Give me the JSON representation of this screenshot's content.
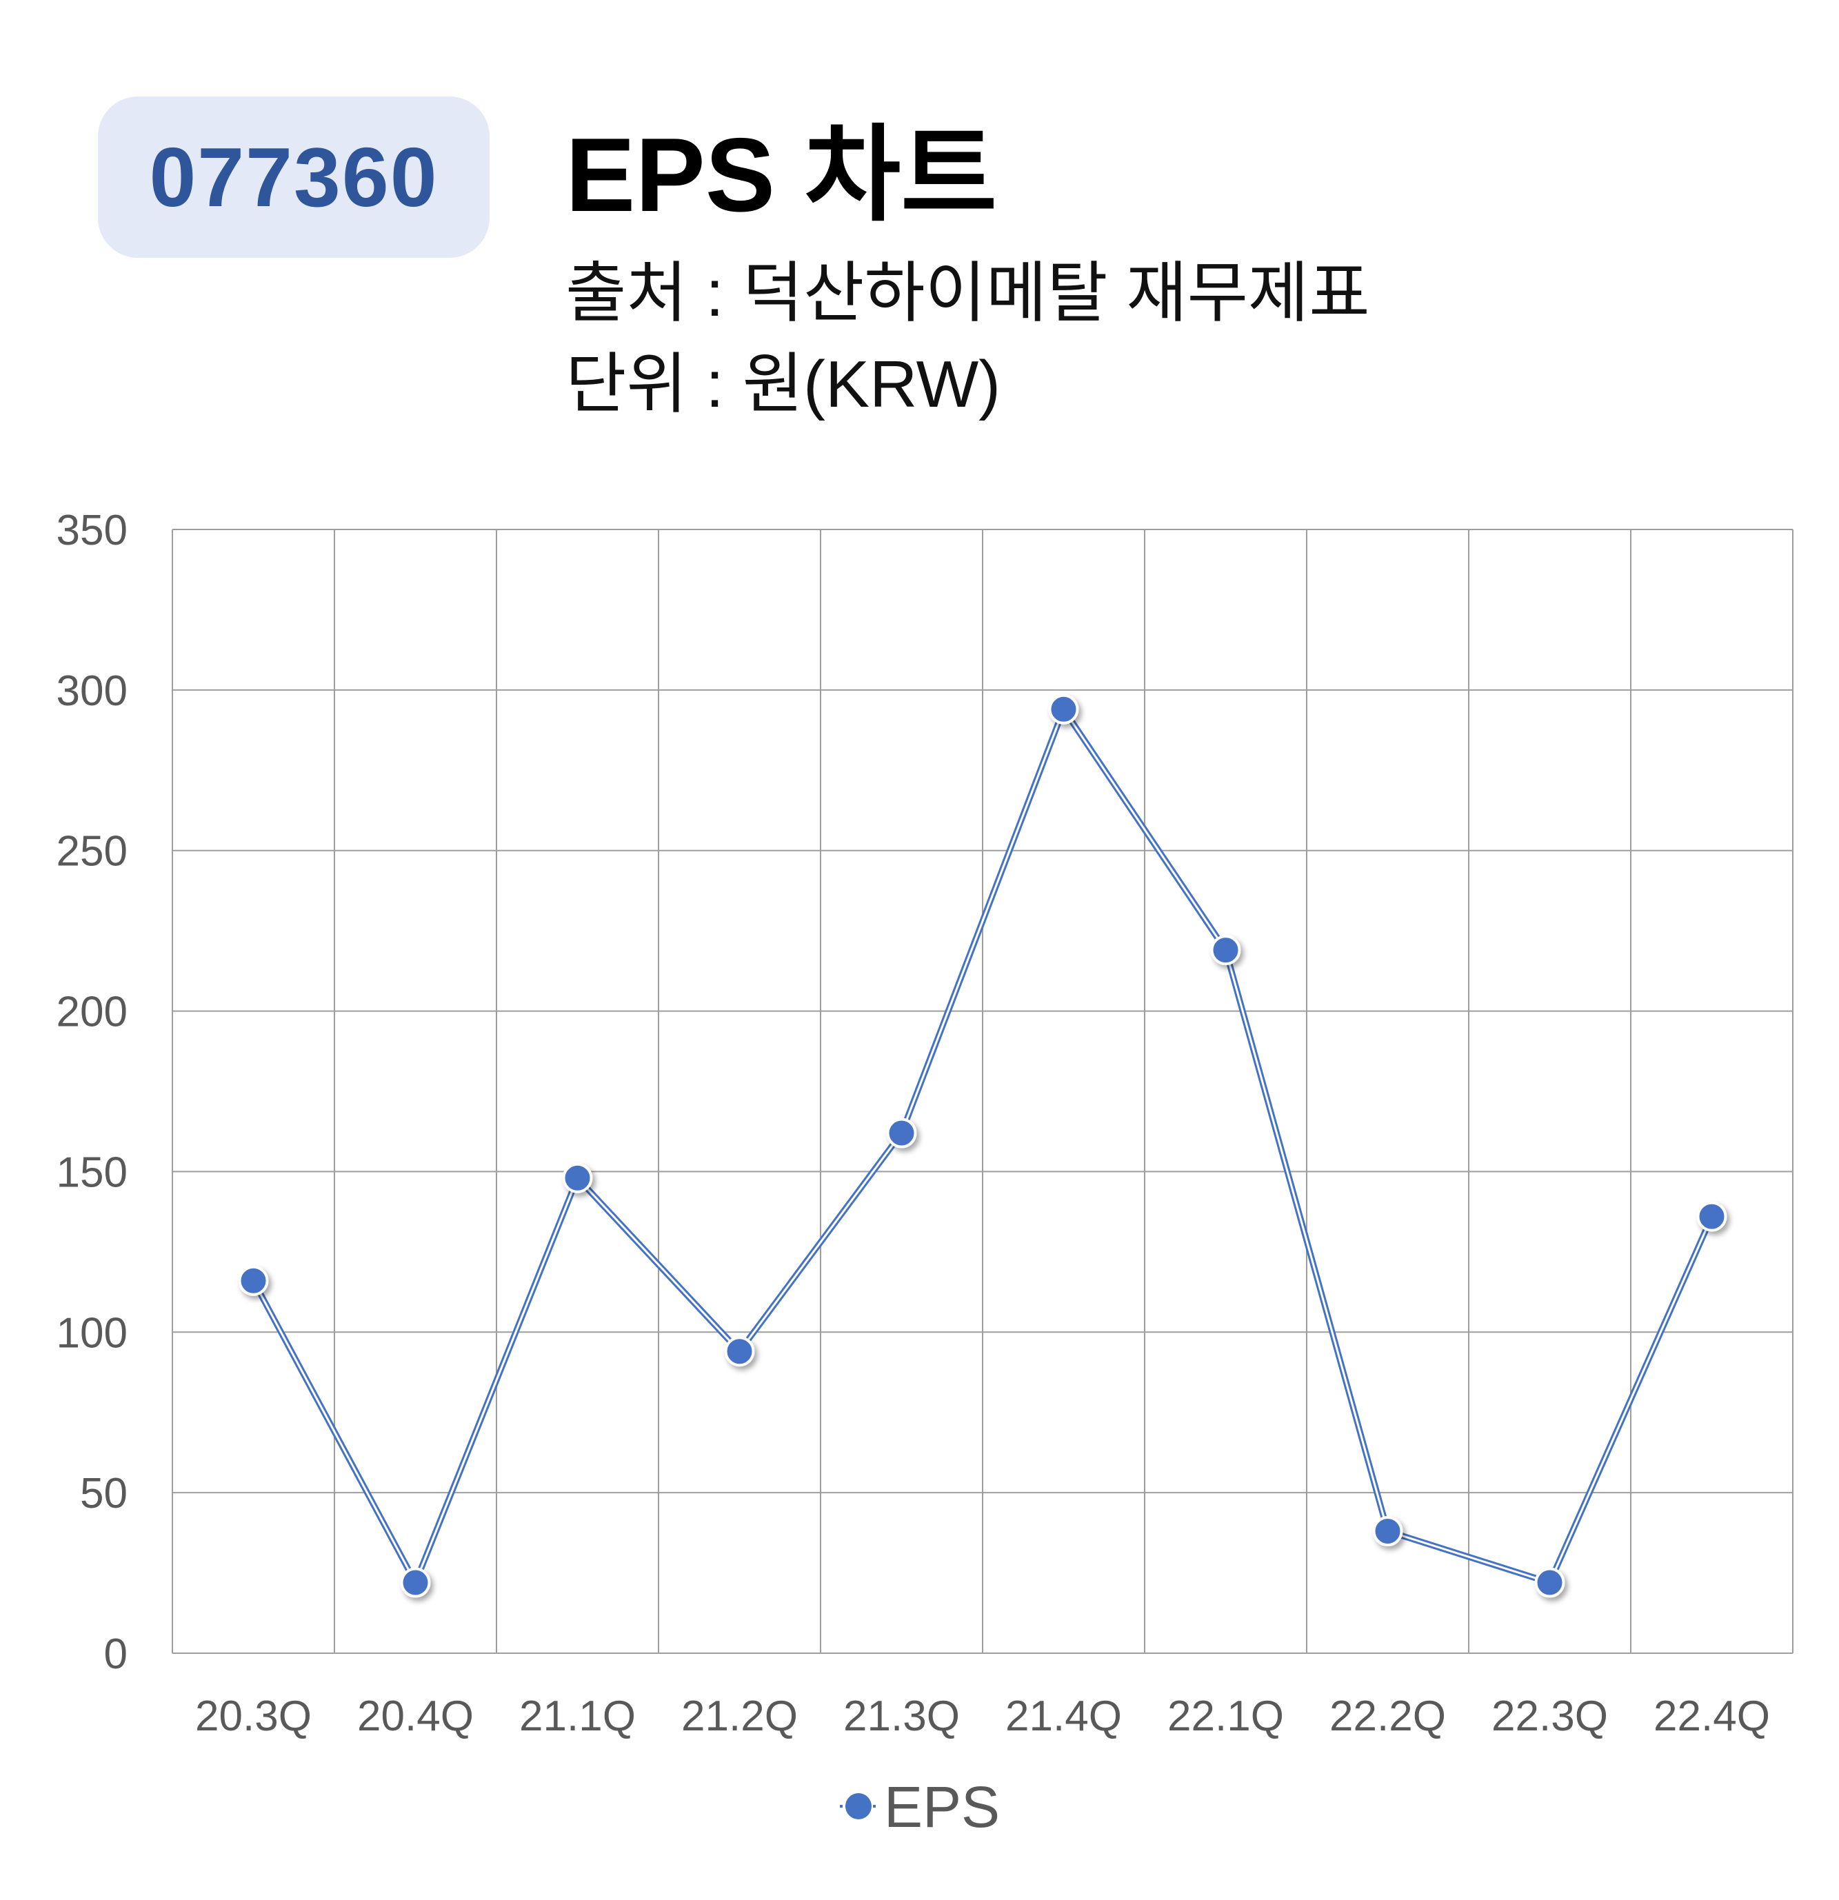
{
  "header": {
    "ticker": "077360",
    "title": "EPS 차트",
    "source_line": "출처 : 덕산하이메탈 재무제표",
    "unit_line": "단위 : 원(KRW)"
  },
  "colors": {
    "series": "#4472c4",
    "badge_bg": "#e3e9f6",
    "badge_text": "#2f559a",
    "grid": "#9e9e9e"
  },
  "chart_data": {
    "type": "line",
    "categories": [
      "20.3Q",
      "20.4Q",
      "21.1Q",
      "21.2Q",
      "21.3Q",
      "21.4Q",
      "22.1Q",
      "22.2Q",
      "22.3Q",
      "22.4Q"
    ],
    "series": [
      {
        "name": "EPS",
        "values": [
          116,
          22,
          148,
          94,
          162,
          294,
          219,
          38,
          22,
          136
        ]
      }
    ],
    "ylim": [
      0,
      350
    ],
    "yticks": [
      0,
      50,
      100,
      150,
      200,
      250,
      300,
      350
    ],
    "grid": true,
    "legend": "bottom-center"
  }
}
